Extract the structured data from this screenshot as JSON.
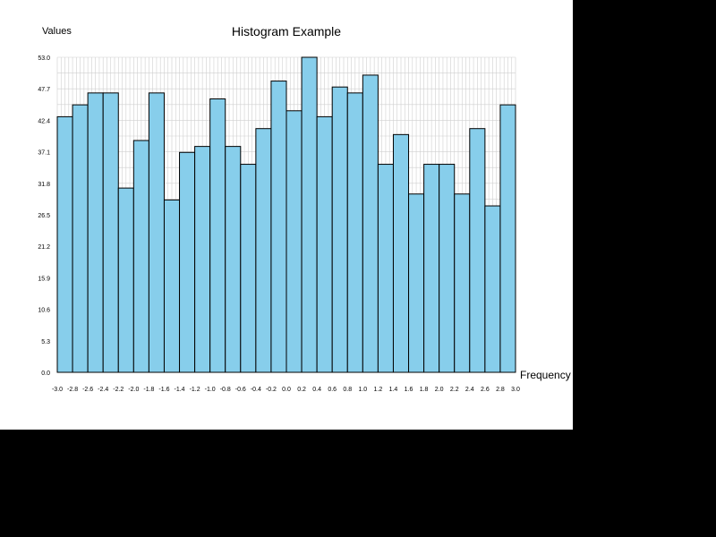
{
  "chart_data": {
    "type": "bar",
    "title": "Histogram Example",
    "xlabel": "Frequency",
    "ylabel": "Values",
    "x_ticks": [
      "-3.0",
      "-2.8",
      "-2.6",
      "-2.4",
      "-2.2",
      "-2.0",
      "-1.8",
      "-1.6",
      "-1.4",
      "-1.2",
      "-1.0",
      "-0.8",
      "-0.6",
      "-0.4",
      "-0.2",
      "0.0",
      "0.2",
      "0.4",
      "0.6",
      "0.8",
      "1.0",
      "1.2",
      "1.4",
      "1.6",
      "1.8",
      "2.0",
      "2.2",
      "2.4",
      "2.6",
      "2.8",
      "3.0"
    ],
    "y_ticks": [
      "0.0",
      "5.3",
      "10.6",
      "15.9",
      "21.2",
      "26.5",
      "31.8",
      "37.1",
      "42.4",
      "47.7",
      "53.0"
    ],
    "xlim": [
      -3.0,
      3.0
    ],
    "ylim": [
      0,
      53
    ],
    "bin_width": 0.2,
    "bin_starts": [
      -3.0,
      -2.8,
      -2.6,
      -2.4,
      -2.2,
      -2.0,
      -1.8,
      -1.6,
      -1.4,
      -1.2,
      -1.0,
      -0.8,
      -0.6,
      -0.4,
      -0.2,
      0.0,
      0.2,
      0.4,
      0.6,
      0.8,
      1.0,
      1.2,
      1.4,
      1.6,
      1.8,
      2.0,
      2.2,
      2.4,
      2.6,
      2.8
    ],
    "values": [
      43,
      45,
      47,
      47,
      31,
      39,
      47,
      29,
      37,
      38,
      46,
      38,
      35,
      41,
      49,
      44,
      53,
      43,
      48,
      47,
      50,
      35,
      40,
      30,
      35,
      35,
      30,
      41,
      28,
      45
    ],
    "grid": true,
    "bar_color": "#87ceeb",
    "bar_edge_color": "#000000"
  }
}
